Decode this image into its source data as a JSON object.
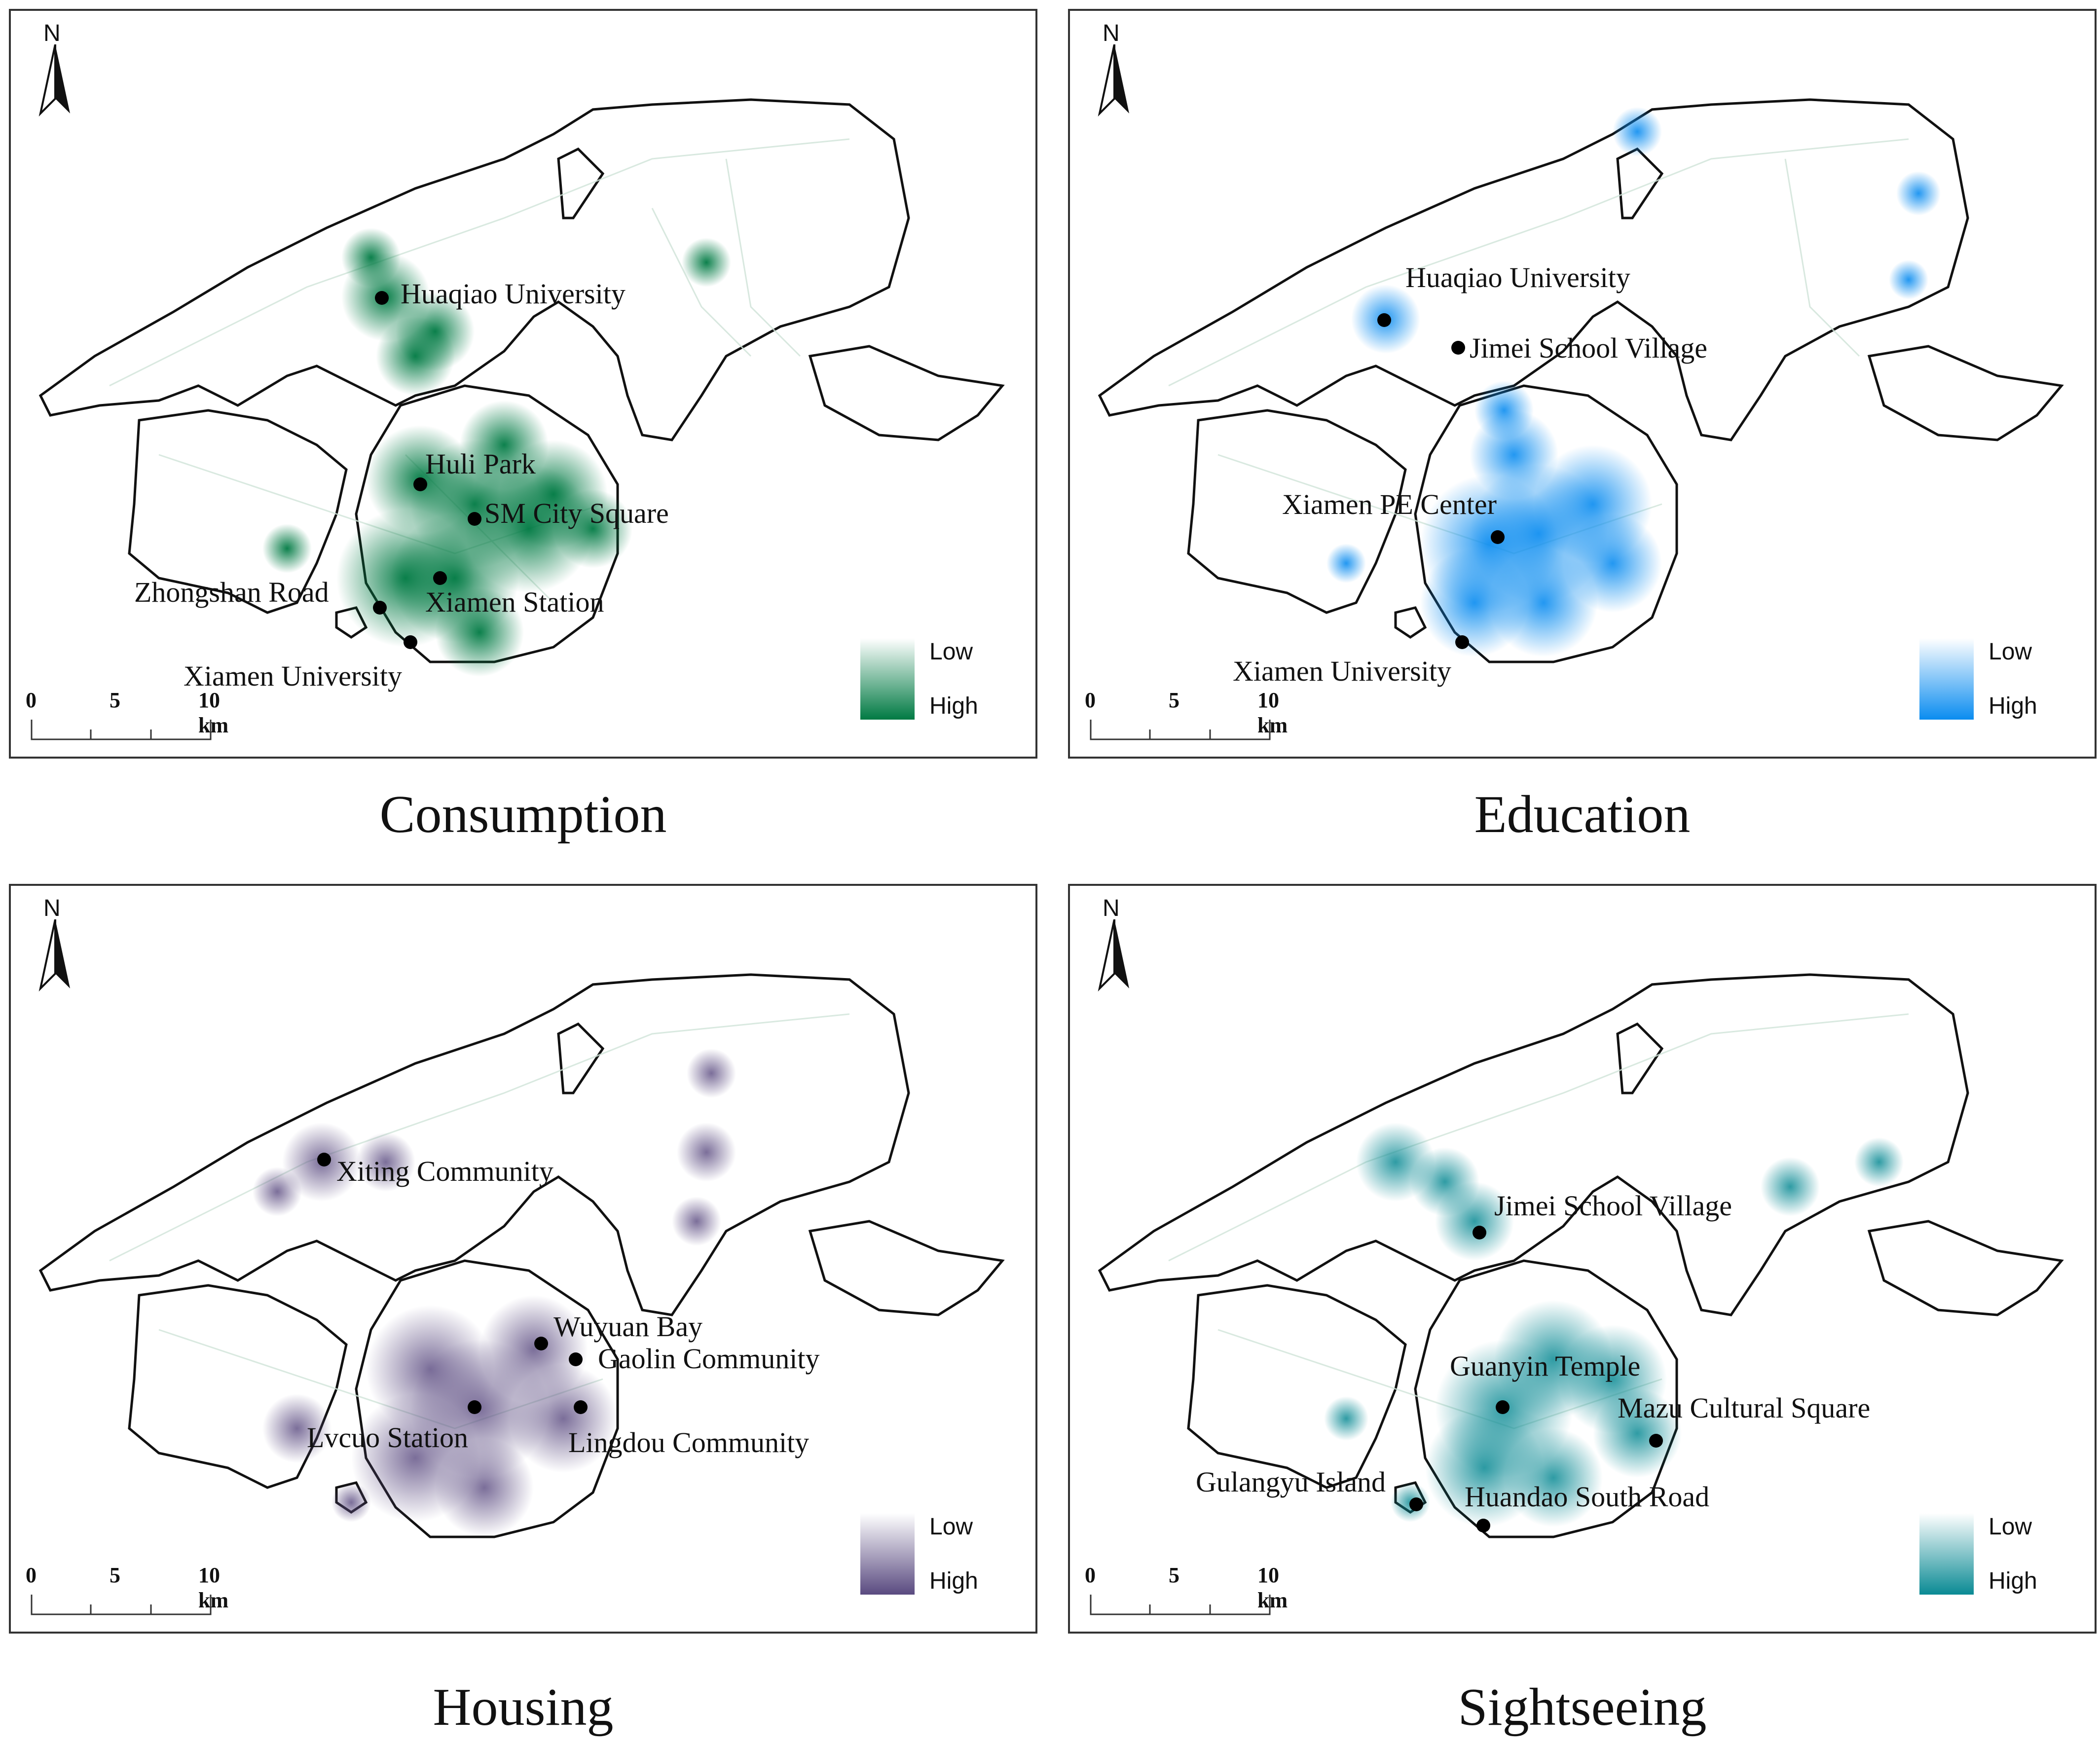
{
  "panels": [
    {
      "caption": "Consumption",
      "color": "#007a43",
      "legend": {
        "low": "Low",
        "high": "High"
      },
      "labels": [
        "Huaqiao University",
        "Huli Park",
        "SM City Square",
        "Zhongshan Road",
        "Xiamen Station",
        "Xiamen University"
      ]
    },
    {
      "caption": "Education",
      "color": "#0a8cf0",
      "legend": {
        "low": "Low",
        "high": "High"
      },
      "labels": [
        "Huaqiao University",
        "Jimei School Village",
        "Xiamen PE Center",
        "Xiamen University"
      ]
    },
    {
      "caption": "Housing",
      "color": "#5a4a80",
      "legend": {
        "low": "Low",
        "high": "High"
      },
      "labels": [
        "Xiting Community",
        "Wuyuan Bay",
        "Gaolin Community",
        "Lvcuo Station",
        "Lingdou Community"
      ]
    },
    {
      "caption": "Sightseeing",
      "color": "#0a8a94",
      "legend": {
        "low": "Low",
        "high": "High"
      },
      "labels": [
        "Jimei School Village",
        "Guanyin Temple",
        "Mazu Cultural Square",
        "Gulangyu Island",
        "Huandao South Road"
      ]
    }
  ],
  "north_label": "N",
  "scale_bar": {
    "ticks": [
      "0",
      "5",
      "10 km"
    ]
  }
}
